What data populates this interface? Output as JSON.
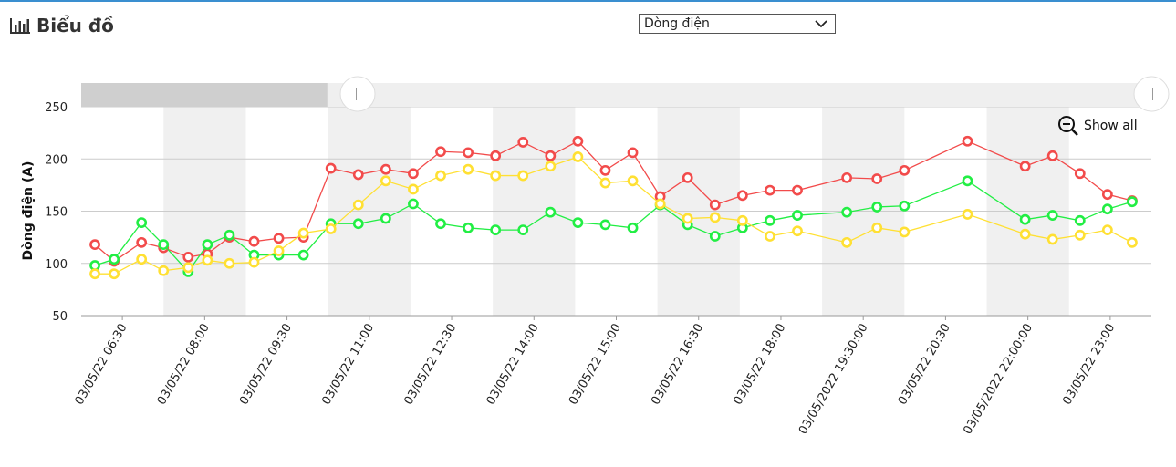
{
  "header": {
    "title": "Biểu đồ",
    "icon": "bar-chart-icon"
  },
  "metric_select": {
    "selected": "Dòng điện"
  },
  "zoom": {
    "label": "Show all",
    "icon": "zoom-out-icon"
  },
  "colors": {
    "red": "#f24b4b",
    "green": "#22ee44",
    "yellow": "#ffe033"
  },
  "chart_data": {
    "type": "line",
    "ylabel": "Dòng điện (A)",
    "xlabel": "",
    "ylim": [
      50,
      250
    ],
    "yticks": [
      50,
      100,
      150,
      200,
      250
    ],
    "grid": true,
    "x_tick_labels": [
      "03/05/22 06:30",
      "03/05/22 08:00",
      "03/05/22 09:30",
      "03/05/22 11:00",
      "03/05/22 12:30",
      "03/05/22 14:00",
      "03/05/22 15:00",
      "03/05/22 16:30",
      "03/05/22 18:00",
      "03/05/2022 19:30:00",
      "03/05/22 20:30",
      "03/05/2022 22:00:00",
      "03/05/22 23:00"
    ],
    "series": [
      {
        "color": "#f24b4b",
        "points": [
          [
            0.5,
            118
          ],
          [
            1.2,
            102
          ],
          [
            2.2,
            120
          ],
          [
            3.0,
            115
          ],
          [
            3.9,
            106
          ],
          [
            4.6,
            109
          ],
          [
            5.4,
            125
          ],
          [
            6.3,
            121
          ],
          [
            7.2,
            124
          ],
          [
            8.1,
            125
          ],
          [
            9.1,
            191
          ],
          [
            10.1,
            185
          ],
          [
            11.1,
            190
          ],
          [
            12.1,
            186
          ],
          [
            13.1,
            207
          ],
          [
            14.1,
            206
          ],
          [
            15.1,
            203
          ],
          [
            16.1,
            216
          ],
          [
            17.1,
            203
          ],
          [
            18.1,
            217
          ],
          [
            19.1,
            189
          ],
          [
            20.1,
            206
          ],
          [
            21.1,
            164
          ],
          [
            22.1,
            182
          ],
          [
            23.1,
            156
          ],
          [
            24.1,
            165
          ],
          [
            25.1,
            170
          ],
          [
            26.1,
            170
          ],
          [
            27.9,
            182
          ],
          [
            29.0,
            181
          ],
          [
            30.0,
            189
          ],
          [
            32.3,
            217
          ],
          [
            34.4,
            193
          ],
          [
            35.4,
            203
          ],
          [
            36.4,
            186
          ],
          [
            37.4,
            166
          ],
          [
            38.3,
            160
          ]
        ]
      },
      {
        "color": "#22ee44",
        "points": [
          [
            0.5,
            98
          ],
          [
            1.2,
            104
          ],
          [
            2.2,
            139
          ],
          [
            3.0,
            118
          ],
          [
            3.9,
            92
          ],
          [
            4.6,
            118
          ],
          [
            5.4,
            127
          ],
          [
            6.3,
            108
          ],
          [
            7.2,
            108
          ],
          [
            8.1,
            108
          ],
          [
            9.1,
            138
          ],
          [
            10.1,
            138
          ],
          [
            11.1,
            143
          ],
          [
            12.1,
            157
          ],
          [
            13.1,
            138
          ],
          [
            14.1,
            134
          ],
          [
            15.1,
            132
          ],
          [
            16.1,
            132
          ],
          [
            17.1,
            149
          ],
          [
            18.1,
            139
          ],
          [
            19.1,
            137
          ],
          [
            20.1,
            134
          ],
          [
            21.1,
            156
          ],
          [
            22.1,
            137
          ],
          [
            23.1,
            126
          ],
          [
            24.1,
            134
          ],
          [
            25.1,
            141
          ],
          [
            26.1,
            146
          ],
          [
            27.9,
            149
          ],
          [
            29.0,
            154
          ],
          [
            30.0,
            155
          ],
          [
            32.3,
            179
          ],
          [
            34.4,
            142
          ],
          [
            35.4,
            146
          ],
          [
            36.4,
            141
          ],
          [
            37.4,
            152
          ],
          [
            38.3,
            159
          ]
        ]
      },
      {
        "color": "#ffe033",
        "points": [
          [
            0.5,
            90
          ],
          [
            1.2,
            90
          ],
          [
            2.2,
            104
          ],
          [
            3.0,
            93
          ],
          [
            3.9,
            96
          ],
          [
            4.6,
            103
          ],
          [
            5.4,
            100
          ],
          [
            6.3,
            101
          ],
          [
            7.2,
            112
          ],
          [
            8.1,
            129
          ],
          [
            9.1,
            133
          ],
          [
            10.1,
            156
          ],
          [
            11.1,
            179
          ],
          [
            12.1,
            171
          ],
          [
            13.1,
            184
          ],
          [
            14.1,
            190
          ],
          [
            15.1,
            184
          ],
          [
            16.1,
            184
          ],
          [
            17.1,
            193
          ],
          [
            18.1,
            202
          ],
          [
            19.1,
            177
          ],
          [
            20.1,
            179
          ],
          [
            21.1,
            157
          ],
          [
            22.1,
            143
          ],
          [
            23.1,
            144
          ],
          [
            24.1,
            141
          ],
          [
            25.1,
            126
          ],
          [
            26.1,
            131
          ],
          [
            27.9,
            120
          ],
          [
            29.0,
            134
          ],
          [
            30.0,
            130
          ],
          [
            32.3,
            147
          ],
          [
            34.4,
            128
          ],
          [
            35.4,
            123
          ],
          [
            36.4,
            127
          ],
          [
            37.4,
            132
          ],
          [
            38.3,
            120
          ]
        ]
      }
    ],
    "navigator": {
      "selected_range": [
        0,
        0.23
      ]
    }
  }
}
